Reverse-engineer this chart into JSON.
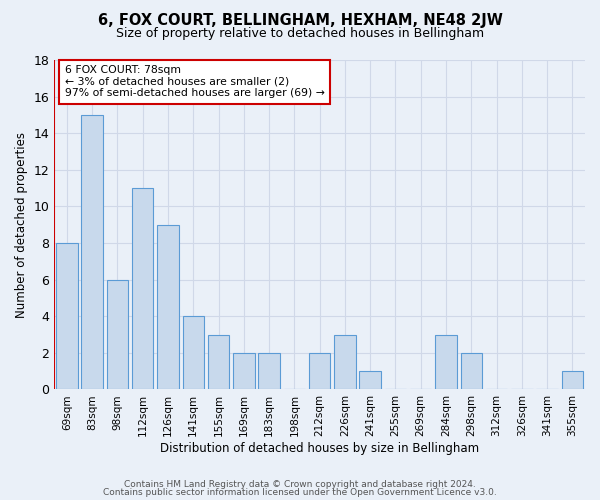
{
  "title": "6, FOX COURT, BELLINGHAM, HEXHAM, NE48 2JW",
  "subtitle": "Size of property relative to detached houses in Bellingham",
  "xlabel": "Distribution of detached houses by size in Bellingham",
  "ylabel": "Number of detached properties",
  "categories": [
    "69sqm",
    "83sqm",
    "98sqm",
    "112sqm",
    "126sqm",
    "141sqm",
    "155sqm",
    "169sqm",
    "183sqm",
    "198sqm",
    "212sqm",
    "226sqm",
    "241sqm",
    "255sqm",
    "269sqm",
    "284sqm",
    "298sqm",
    "312sqm",
    "326sqm",
    "341sqm",
    "355sqm"
  ],
  "values": [
    8,
    15,
    6,
    11,
    9,
    4,
    3,
    2,
    2,
    0,
    2,
    3,
    1,
    0,
    0,
    3,
    2,
    0,
    0,
    0,
    1
  ],
  "bar_color": "#c8d9ec",
  "bar_edge_color": "#5b9bd5",
  "highlight_color": "#cc0000",
  "annotation_text": "6 FOX COURT: 78sqm\n← 3% of detached houses are smaller (2)\n97% of semi-detached houses are larger (69) →",
  "annotation_box_color": "#ffffff",
  "annotation_box_edge_color": "#cc0000",
  "ylim": [
    0,
    18
  ],
  "yticks": [
    0,
    2,
    4,
    6,
    8,
    10,
    12,
    14,
    16,
    18
  ],
  "grid_color": "#d0d8e8",
  "background_color": "#eaf0f8",
  "footer_line1": "Contains HM Land Registry data © Crown copyright and database right 2024.",
  "footer_line2": "Contains public sector information licensed under the Open Government Licence v3.0."
}
